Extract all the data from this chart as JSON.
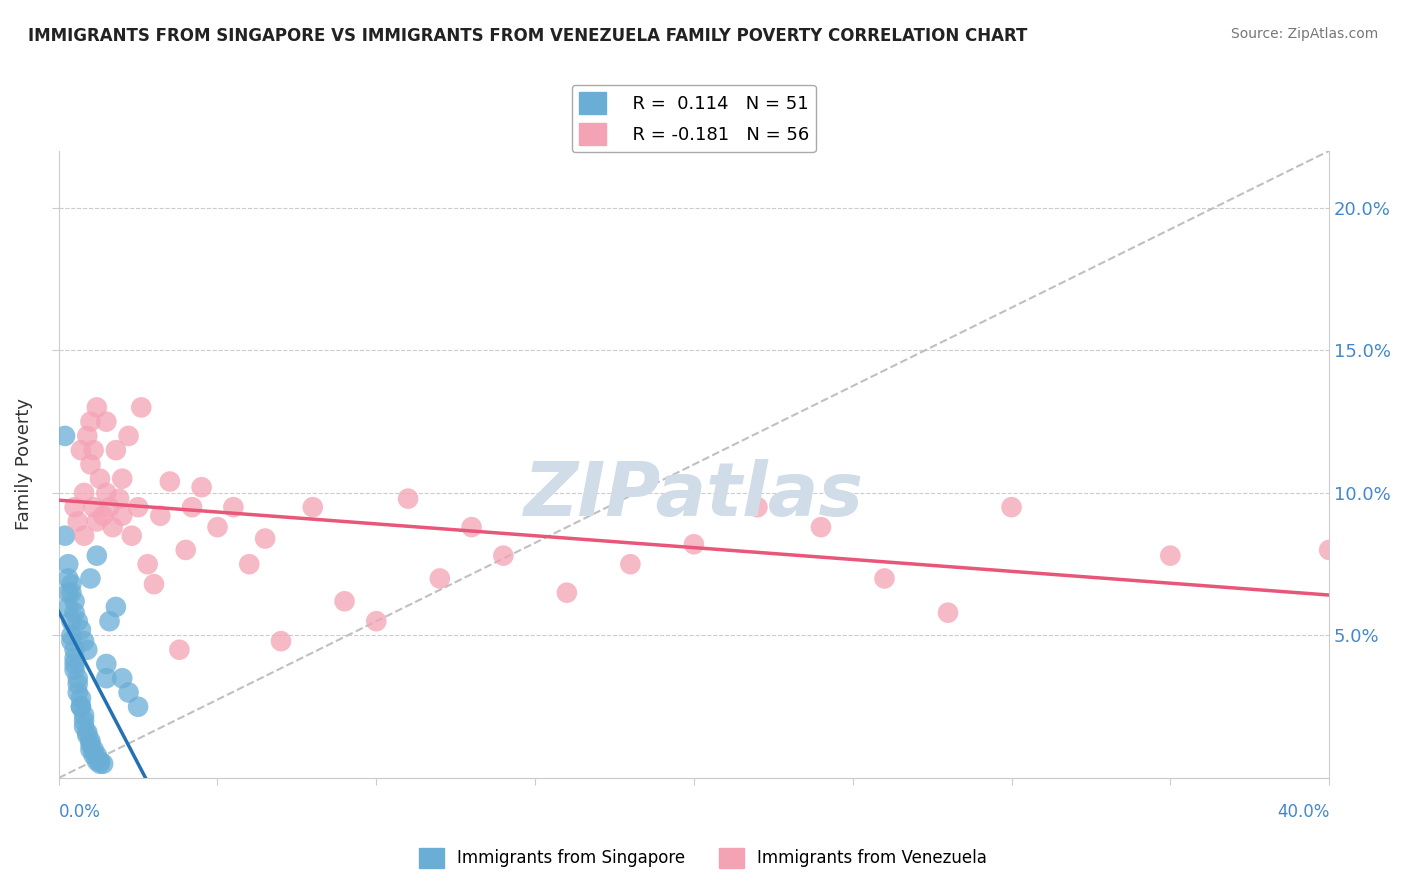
{
  "title": "IMMIGRANTS FROM SINGAPORE VS IMMIGRANTS FROM VENEZUELA FAMILY POVERTY CORRELATION CHART",
  "source": "Source: ZipAtlas.com",
  "ylabel": "Family Poverty",
  "ylabel_right_vals": [
    0.2,
    0.15,
    0.1,
    0.05
  ],
  "ylabel_right_labels": [
    "20.0%",
    "15.0%",
    "10.0%",
    "5.0%"
  ],
  "xmin": 0.0,
  "xmax": 0.4,
  "ymin": 0.0,
  "ymax": 0.22,
  "legend_r_singapore": "R =  0.114",
  "legend_n_singapore": "N = 51",
  "legend_r_venezuela": "R = -0.181",
  "legend_n_venezuela": "N = 56",
  "color_singapore": "#6aaed6",
  "color_venezuela": "#f4a3b5",
  "color_singapore_line": "#2271b5",
  "color_venezuela_line": "#e8567a",
  "color_diag_line": "#c0c0c0",
  "watermark_color": "#d0dce8",
  "singapore_x": [
    0.002,
    0.002,
    0.003,
    0.003,
    0.003,
    0.004,
    0.004,
    0.004,
    0.005,
    0.005,
    0.005,
    0.005,
    0.006,
    0.006,
    0.006,
    0.007,
    0.007,
    0.007,
    0.008,
    0.008,
    0.008,
    0.009,
    0.009,
    0.01,
    0.01,
    0.01,
    0.011,
    0.011,
    0.012,
    0.012,
    0.013,
    0.013,
    0.014,
    0.015,
    0.015,
    0.016,
    0.018,
    0.02,
    0.022,
    0.025,
    0.003,
    0.004,
    0.004,
    0.005,
    0.005,
    0.006,
    0.007,
    0.008,
    0.009,
    0.01,
    0.012
  ],
  "singapore_y": [
    0.12,
    0.085,
    0.075,
    0.065,
    0.06,
    0.055,
    0.05,
    0.048,
    0.045,
    0.042,
    0.04,
    0.038,
    0.035,
    0.033,
    0.03,
    0.028,
    0.025,
    0.025,
    0.022,
    0.02,
    0.018,
    0.016,
    0.015,
    0.013,
    0.012,
    0.01,
    0.01,
    0.008,
    0.008,
    0.006,
    0.006,
    0.005,
    0.005,
    0.04,
    0.035,
    0.055,
    0.06,
    0.035,
    0.03,
    0.025,
    0.07,
    0.068,
    0.065,
    0.062,
    0.058,
    0.055,
    0.052,
    0.048,
    0.045,
    0.07,
    0.078
  ],
  "venezuela_x": [
    0.005,
    0.006,
    0.007,
    0.008,
    0.008,
    0.009,
    0.01,
    0.01,
    0.011,
    0.011,
    0.012,
    0.012,
    0.013,
    0.014,
    0.015,
    0.015,
    0.016,
    0.017,
    0.018,
    0.019,
    0.02,
    0.02,
    0.022,
    0.023,
    0.025,
    0.026,
    0.028,
    0.03,
    0.032,
    0.035,
    0.038,
    0.04,
    0.042,
    0.045,
    0.05,
    0.055,
    0.06,
    0.065,
    0.07,
    0.08,
    0.09,
    0.1,
    0.11,
    0.12,
    0.13,
    0.14,
    0.16,
    0.18,
    0.2,
    0.22,
    0.24,
    0.26,
    0.28,
    0.3,
    0.35,
    0.4
  ],
  "venezuela_y": [
    0.095,
    0.09,
    0.115,
    0.1,
    0.085,
    0.12,
    0.125,
    0.11,
    0.095,
    0.115,
    0.09,
    0.13,
    0.105,
    0.092,
    0.1,
    0.125,
    0.095,
    0.088,
    0.115,
    0.098,
    0.105,
    0.092,
    0.12,
    0.085,
    0.095,
    0.13,
    0.075,
    0.068,
    0.092,
    0.104,
    0.045,
    0.08,
    0.095,
    0.102,
    0.088,
    0.095,
    0.075,
    0.084,
    0.048,
    0.095,
    0.062,
    0.055,
    0.098,
    0.07,
    0.088,
    0.078,
    0.065,
    0.075,
    0.082,
    0.095,
    0.088,
    0.07,
    0.058,
    0.095,
    0.078,
    0.08
  ]
}
